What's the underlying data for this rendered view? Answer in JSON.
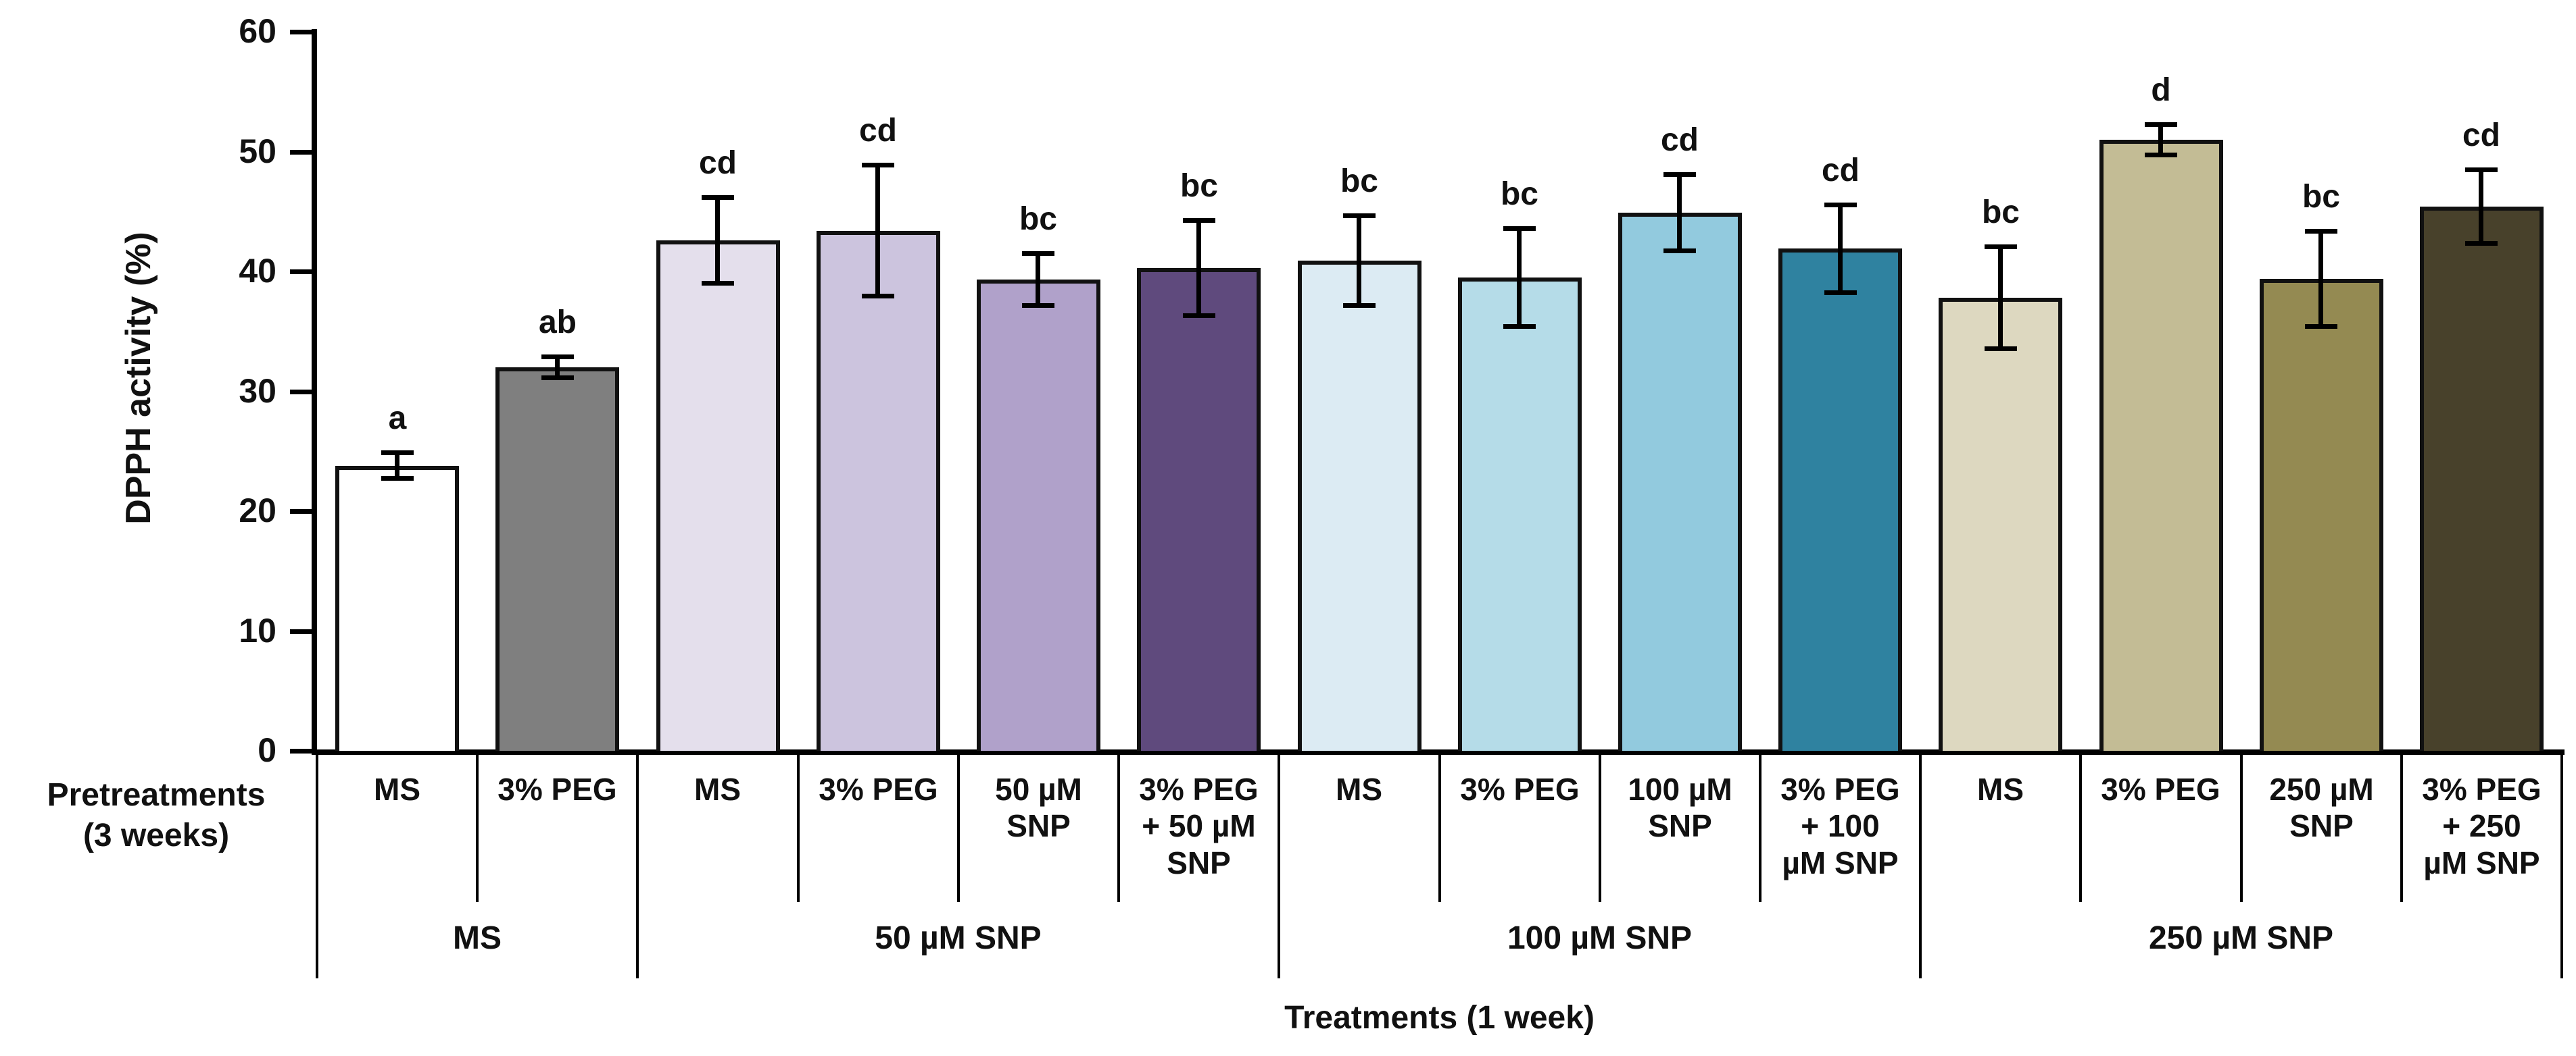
{
  "figure": {
    "background": "#FFFFFF",
    "axis_color": "#000000",
    "bar_border_color": "#111111"
  },
  "chart_data": {
    "type": "bar",
    "title": "",
    "ylabel": "DPPH activity (%)",
    "xlabel": "Treatments (1 week)",
    "row_label": "Pretreatments\n(3 weeks)",
    "ylim": [
      0,
      60
    ],
    "yticks": [
      0,
      10,
      20,
      30,
      40,
      50,
      60
    ],
    "grid": false,
    "legend": "none",
    "error_bars": "plus-minus, black caps",
    "groups": [
      {
        "treatment": "MS",
        "bars": [
          {
            "pretreatment": "MS",
            "value": 23.8,
            "error": 1.1,
            "letter": "a",
            "color": "#FFFFFF"
          },
          {
            "pretreatment": "3% PEG",
            "value": 32.0,
            "error": 0.9,
            "letter": "ab",
            "color": "#7F7F7F"
          }
        ]
      },
      {
        "treatment": "50 µM SNP",
        "bars": [
          {
            "pretreatment": "MS",
            "value": 42.6,
            "error": 3.6,
            "letter": "cd",
            "color": "#E4DFEC"
          },
          {
            "pretreatment": "3% PEG",
            "value": 43.4,
            "error": 5.5,
            "letter": "cd",
            "color": "#CCC4DE"
          },
          {
            "pretreatment": "50 µM\nSNP",
            "value": 39.3,
            "error": 2.2,
            "letter": "bc",
            "color": "#B0A1CA"
          },
          {
            "pretreatment": "3% PEG\n+ 50 µM\nSNP",
            "value": 40.3,
            "error": 4.0,
            "letter": "bc",
            "color": "#5F4A7D"
          }
        ]
      },
      {
        "treatment": "100 µM SNP",
        "bars": [
          {
            "pretreatment": "MS",
            "value": 40.9,
            "error": 3.8,
            "letter": "bc",
            "color": "#DCEBF3"
          },
          {
            "pretreatment": "3% PEG",
            "value": 39.5,
            "error": 4.1,
            "letter": "bc",
            "color": "#B5DCE8"
          },
          {
            "pretreatment": "100 µM\nSNP",
            "value": 44.9,
            "error": 3.2,
            "letter": "cd",
            "color": "#92CADE"
          },
          {
            "pretreatment": "3% PEG\n+ 100\nµM SNP",
            "value": 41.9,
            "error": 3.7,
            "letter": "cd",
            "color": "#2F82A0"
          }
        ]
      },
      {
        "treatment": "250 µM SNP",
        "bars": [
          {
            "pretreatment": "MS",
            "value": 37.8,
            "error": 4.3,
            "letter": "bc",
            "color": "#DDD8C0"
          },
          {
            "pretreatment": "3% PEG",
            "value": 51.0,
            "error": 1.3,
            "letter": "d",
            "color": "#C3BC95"
          },
          {
            "pretreatment": "250 µM\nSNP",
            "value": 39.4,
            "error": 4.0,
            "letter": "bc",
            "color": "#948A52"
          },
          {
            "pretreatment": "3% PEG\n+ 250\nµM SNP",
            "value": 45.4,
            "error": 3.1,
            "letter": "cd",
            "color": "#48412B"
          }
        ]
      }
    ]
  }
}
